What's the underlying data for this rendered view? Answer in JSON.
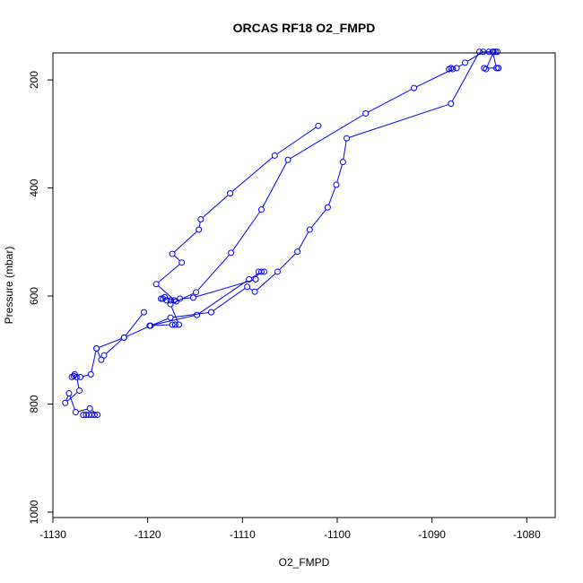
{
  "chart_data": {
    "type": "line",
    "title": "ORCAS RF18 O2_FMPD",
    "xlabel": "O2_FMPD",
    "ylabel": "Pressure (mbar)",
    "xlim": [
      -1130,
      -1077
    ],
    "ylim": [
      1010,
      150
    ],
    "y_reversed": true,
    "x_ticks": [
      -1130,
      -1120,
      -1110,
      -1100,
      -1090,
      -1080
    ],
    "x_tick_labels": [
      "-1130",
      "-1120",
      "-1110",
      "-1100",
      "-1090",
      "-1080"
    ],
    "y_ticks": [
      200,
      400,
      600,
      800,
      1000
    ],
    "y_tick_labels": [
      "200",
      "400",
      "600",
      "800",
      "1000"
    ],
    "grid": false,
    "legend": "none",
    "series": [
      {
        "color": "#0000ff",
        "marker": "open-circle",
        "points": [
          [
            -1126.8,
            820
          ],
          [
            -1126.5,
            820
          ],
          [
            -1126.2,
            820
          ],
          [
            -1125.9,
            820
          ],
          [
            -1125.6,
            820
          ],
          [
            -1125.3,
            820
          ],
          [
            -1126.1,
            808
          ],
          [
            -1127.6,
            815
          ],
          [
            -1128.3,
            780
          ],
          [
            -1128.7,
            798
          ],
          [
            -1127.2,
            775
          ],
          [
            -1127.5,
            750
          ],
          [
            -1127.8,
            748
          ],
          [
            -1128.0,
            750
          ],
          [
            -1127.7,
            745
          ],
          [
            -1127.1,
            750
          ],
          [
            -1126.0,
            745
          ],
          [
            -1125.4,
            697
          ],
          [
            -1124.9,
            718
          ],
          [
            -1124.6,
            710
          ],
          [
            -1122.5,
            677
          ],
          [
            -1119.7,
            655
          ],
          [
            -1117.6,
            640
          ],
          [
            -1113.3,
            630
          ],
          [
            -1109.5,
            583
          ],
          [
            -1108.7,
            592
          ],
          [
            -1106.3,
            555
          ],
          [
            -1104.2,
            518
          ],
          [
            -1102.9,
            477
          ],
          [
            -1101.0,
            436
          ],
          [
            -1100.1,
            394
          ],
          [
            -1099.4,
            352
          ],
          [
            -1099.0,
            308
          ],
          [
            -1088.0,
            244
          ],
          [
            -1085.0,
            148
          ],
          [
            -1084.0,
            148
          ],
          [
            -1083.6,
            148
          ],
          [
            -1083.2,
            178
          ],
          [
            -1083.0,
            178
          ]
        ]
      },
      {
        "color": "#0000ff",
        "marker": "open-circle",
        "points": [
          [
            -1083.0,
            178
          ],
          [
            -1084.5,
            178
          ],
          [
            -1084.3,
            180
          ],
          [
            -1083.5,
            148
          ],
          [
            -1083.3,
            148
          ],
          [
            -1083.1,
            148
          ]
        ]
      },
      {
        "color": "#0000ff",
        "marker": "open-circle",
        "points": [
          [
            -1083.6,
            148
          ],
          [
            -1084.6,
            148
          ],
          [
            -1086.5,
            168
          ],
          [
            -1087.4,
            178
          ],
          [
            -1088.0,
            178
          ],
          [
            -1088.2,
            180
          ],
          [
            -1087.8,
            180
          ],
          [
            -1091.9,
            215
          ],
          [
            -1097.0,
            262
          ],
          [
            -1105.2,
            348
          ],
          [
            -1108.0,
            440
          ],
          [
            -1111.2,
            520
          ],
          [
            -1114.9,
            593
          ],
          [
            -1117.6,
            615
          ],
          [
            -1116.7,
            653
          ],
          [
            -1117.1,
            653
          ],
          [
            -1117.4,
            653
          ],
          [
            -1119.8,
            655
          ],
          [
            -1114.8,
            635
          ],
          [
            -1109.3,
            569
          ],
          [
            -1108.0,
            555
          ],
          [
            -1107.7,
            555
          ],
          [
            -1108.3,
            555
          ],
          [
            -1108.6,
            569
          ],
          [
            -1115.2,
            603
          ],
          [
            -1116.6,
            605
          ],
          [
            -1117.2,
            608
          ],
          [
            -1117.6,
            608
          ],
          [
            -1118.0,
            608
          ],
          [
            -1118.4,
            605
          ],
          [
            -1118.6,
            605
          ],
          [
            -1118.2,
            602
          ],
          [
            -1117.0,
            610
          ],
          [
            -1119.1,
            578
          ],
          [
            -1116.4,
            538
          ],
          [
            -1117.4,
            522
          ],
          [
            -1114.6,
            477
          ],
          [
            -1114.4,
            458
          ],
          [
            -1111.3,
            410
          ],
          [
            -1106.6,
            340
          ],
          [
            -1102.0,
            285
          ]
        ]
      },
      {
        "color": "#0000ff",
        "marker": "open-circle",
        "points": [
          [
            -1120.4,
            630
          ],
          [
            -1122.5,
            677
          ],
          [
            -1125.4,
            697
          ]
        ]
      }
    ]
  }
}
